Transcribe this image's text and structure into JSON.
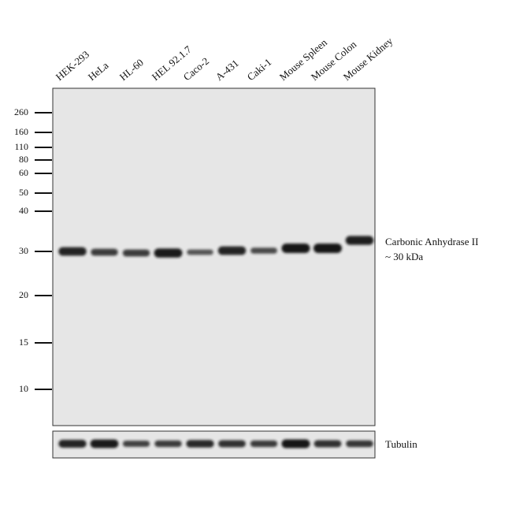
{
  "lanes": [
    {
      "label": "HEK-293",
      "band": 0.85,
      "tubulin": 0.85
    },
    {
      "label": "HeLa",
      "band": 0.6,
      "tubulin": 0.95
    },
    {
      "label": "HL-60",
      "band": 0.6,
      "tubulin": 0.55
    },
    {
      "label": "HEL 92.1.7",
      "band": 0.95,
      "tubulin": 0.6
    },
    {
      "label": "Caco-2",
      "band": 0.35,
      "tubulin": 0.8
    },
    {
      "label": "A-431",
      "band": 0.85,
      "tubulin": 0.7
    },
    {
      "label": "Caki-1",
      "band": 0.45,
      "tubulin": 0.6
    },
    {
      "label": "Mouse Spleen",
      "band": 1.0,
      "tubulin": 1.0
    },
    {
      "label": "Mouse Colon",
      "band": 1.0,
      "tubulin": 0.7
    },
    {
      "label": "Mouse Kidney",
      "band": 0.9,
      "tubulin": 0.65
    }
  ],
  "markers": [
    "260",
    "160",
    "110",
    "80",
    "60",
    "50",
    "40",
    "30",
    "20",
    "15",
    "10"
  ],
  "band_label": {
    "line1": "Carbonic Anhydrase II",
    "line2": "~ 30 kDa"
  },
  "loading_control": "Tubulin",
  "colors": {
    "membrane": "#e6e6e6",
    "band": "#151515",
    "border": "#333333"
  }
}
